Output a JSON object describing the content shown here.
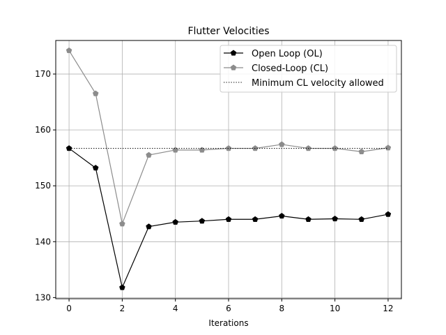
{
  "chart_data": {
    "type": "line",
    "title": "Flutter Velocities",
    "xlabel": "Iterations",
    "ylabel": "",
    "xlim": [
      -0.5,
      12.5
    ],
    "ylim": [
      129.8,
      176.0
    ],
    "xticks": [
      0,
      2,
      4,
      6,
      8,
      10,
      12
    ],
    "yticks": [
      130,
      140,
      150,
      160,
      170
    ],
    "grid": true,
    "legend_position": "upper right",
    "series": [
      {
        "name": "Open Loop (OL)",
        "color": "#000000",
        "marker": "pentagon",
        "linestyle": "solid",
        "x": [
          0,
          1,
          2,
          3,
          4,
          5,
          6,
          7,
          8,
          9,
          10,
          11,
          12
        ],
        "values": [
          156.7,
          153.2,
          131.8,
          142.7,
          143.5,
          143.7,
          144.0,
          144.0,
          144.6,
          144.0,
          144.1,
          144.0,
          144.9
        ]
      },
      {
        "name": "Closed-Loop (CL)",
        "color": "#8c8c8c",
        "marker": "pentagon",
        "linestyle": "solid",
        "x": [
          0,
          1,
          2,
          3,
          4,
          5,
          6,
          7,
          8,
          9,
          10,
          11,
          12
        ],
        "values": [
          174.2,
          166.5,
          143.2,
          155.5,
          156.4,
          156.4,
          156.7,
          156.7,
          157.4,
          156.7,
          156.7,
          156.1,
          156.8
        ]
      },
      {
        "name": "Minimum CL velocity allowed",
        "color": "#000000",
        "marker": "none",
        "linestyle": "dotted",
        "x": [
          0,
          12
        ],
        "values": [
          156.7,
          156.7
        ]
      }
    ]
  }
}
